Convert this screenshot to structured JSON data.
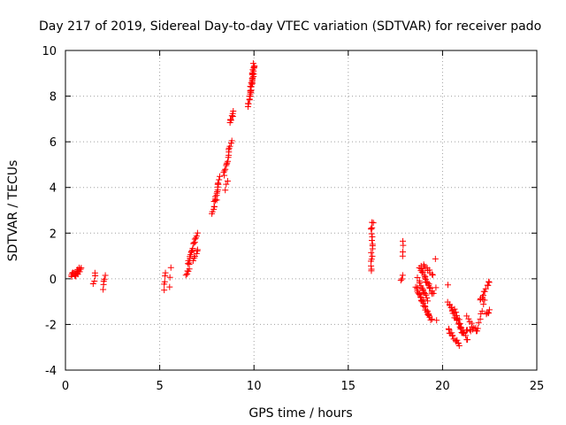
{
  "chart_data": {
    "type": "scatter",
    "title": "Day 217 of 2019, Sidereal Day-to-day VTEC variation (SDTVAR) for receiver pado",
    "xlabel": "GPS time / hours",
    "ylabel": "SDTVAR / TECUs",
    "xlim": [
      0,
      25
    ],
    "ylim": [
      -4,
      10
    ],
    "xticks": [
      0,
      5,
      10,
      15,
      20,
      25
    ],
    "yticks": [
      -4,
      -2,
      0,
      2,
      4,
      6,
      8,
      10
    ],
    "xtick_labels": [
      "0",
      "5",
      "10",
      "15",
      "20",
      "25"
    ],
    "ytick_labels": [
      "-4",
      "-2",
      "0",
      "2",
      "4",
      "6",
      "8",
      "10"
    ],
    "grid": true,
    "marker": "+",
    "color": "#ff0000",
    "segments": [
      {
        "x0": 0.3,
        "x1": 0.8,
        "y0": 0.15,
        "y1": 0.4,
        "n": 14
      },
      {
        "x0": 0.5,
        "x1": 0.8,
        "y0": 0.1,
        "y1": 0.5,
        "n": 6
      },
      {
        "x0": 1.5,
        "x1": 1.6,
        "y0": -0.2,
        "y1": 0.3,
        "n": 4
      },
      {
        "x0": 2.0,
        "x1": 2.1,
        "y0": -0.5,
        "y1": 0.2,
        "n": 5
      },
      {
        "x0": 5.2,
        "x1": 5.3,
        "y0": -0.5,
        "y1": 0.3,
        "n": 5
      },
      {
        "x0": 5.5,
        "x1": 5.6,
        "y0": -0.4,
        "y1": 0.5,
        "n": 3
      },
      {
        "x0": 6.4,
        "x1": 6.6,
        "y0": 0.1,
        "y1": 0.7,
        "n": 7
      },
      {
        "x0": 6.5,
        "x1": 7.0,
        "y0": 0.7,
        "y1": 2.0,
        "n": 16
      },
      {
        "x0": 6.8,
        "x1": 7.0,
        "y0": 0.8,
        "y1": 1.3,
        "n": 6
      },
      {
        "x0": 7.8,
        "x1": 8.1,
        "y0": 2.8,
        "y1": 4.2,
        "n": 14
      },
      {
        "x0": 8.0,
        "x1": 8.2,
        "y0": 3.5,
        "y1": 4.5,
        "n": 6
      },
      {
        "x0": 8.4,
        "x1": 8.8,
        "y0": 4.5,
        "y1": 6.0,
        "n": 16
      },
      {
        "x0": 8.5,
        "x1": 8.6,
        "y0": 3.9,
        "y1": 4.3,
        "n": 3
      },
      {
        "x0": 8.7,
        "x1": 8.9,
        "y0": 6.8,
        "y1": 7.3,
        "n": 8
      },
      {
        "x0": 9.7,
        "x1": 10.0,
        "y0": 7.6,
        "y1": 9.4,
        "n": 28
      },
      {
        "x0": 9.8,
        "x1": 10.0,
        "y0": 8.0,
        "y1": 9.3,
        "n": 10
      },
      {
        "x0": 16.2,
        "x1": 16.3,
        "y0": 2.0,
        "y1": 2.5,
        "n": 6
      },
      {
        "x0": 16.2,
        "x1": 16.3,
        "y0": 0.3,
        "y1": 1.8,
        "n": 12
      },
      {
        "x0": 17.9,
        "x1": 17.9,
        "y0": 1.0,
        "y1": 1.7,
        "n": 4
      },
      {
        "x0": 17.8,
        "x1": 17.9,
        "y0": -0.1,
        "y1": 0.1,
        "n": 3
      },
      {
        "x0": 18.6,
        "x1": 19.4,
        "y0": -0.4,
        "y1": -1.8,
        "n": 30
      },
      {
        "x0": 18.8,
        "x1": 19.5,
        "y0": 0.5,
        "y1": -0.7,
        "n": 22
      },
      {
        "x0": 18.9,
        "x1": 19.5,
        "y0": 0.6,
        "y1": 0.2,
        "n": 10
      },
      {
        "x0": 18.7,
        "x1": 19.2,
        "y0": 0.0,
        "y1": -0.9,
        "n": 14
      },
      {
        "x0": 19.6,
        "x1": 19.7,
        "y0": 0.9,
        "y1": -1.8,
        "n": 3
      },
      {
        "x0": 20.3,
        "x1": 20.3,
        "y0": -0.2,
        "y1": -0.2,
        "n": 1
      },
      {
        "x0": 20.3,
        "x1": 21.0,
        "y0": -1.0,
        "y1": -2.2,
        "n": 18
      },
      {
        "x0": 20.3,
        "x1": 20.9,
        "y0": -2.2,
        "y1": -2.9,
        "n": 14
      },
      {
        "x0": 20.6,
        "x1": 21.3,
        "y0": -1.3,
        "y1": -2.7,
        "n": 14
      },
      {
        "x0": 21.0,
        "x1": 21.6,
        "y0": -2.4,
        "y1": -2.2,
        "n": 8
      },
      {
        "x0": 21.3,
        "x1": 21.8,
        "y0": -1.7,
        "y1": -2.3,
        "n": 8
      },
      {
        "x0": 21.8,
        "x1": 22.2,
        "y0": -2.3,
        "y1": -1.0,
        "n": 8
      },
      {
        "x0": 22.0,
        "x1": 22.5,
        "y0": -1.0,
        "y1": -0.1,
        "n": 12
      },
      {
        "x0": 22.3,
        "x1": 22.5,
        "y0": -1.6,
        "y1": -1.4,
        "n": 5
      }
    ]
  }
}
